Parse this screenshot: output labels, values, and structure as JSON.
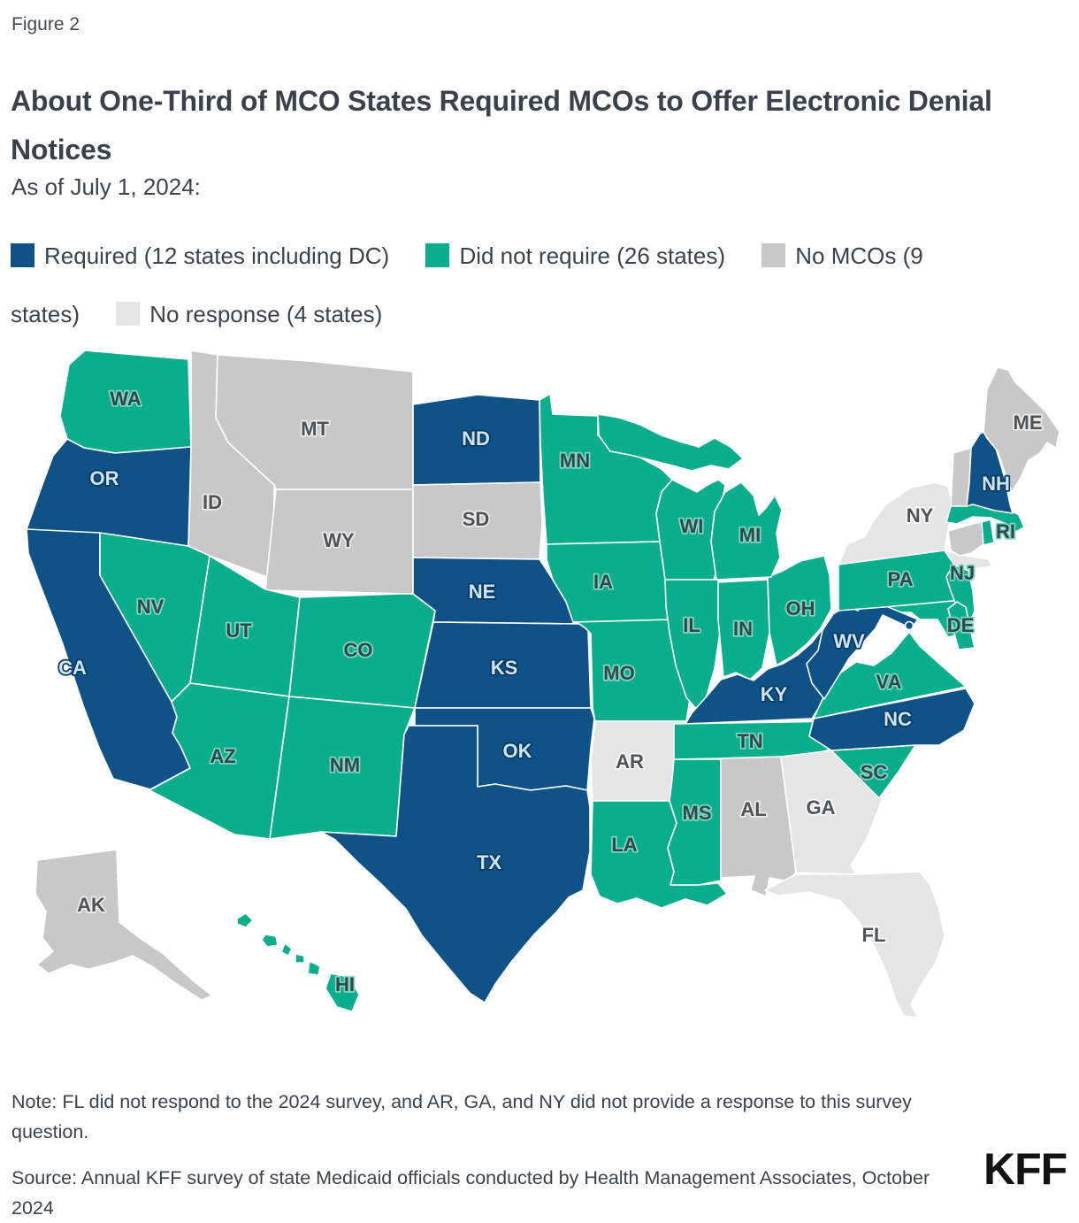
{
  "figure_label": "Figure 2",
  "title": "About One-Third of MCO States Required MCOs to Offer Electronic Denial Notices",
  "subtitle": "As of July 1, 2024:",
  "legend": {
    "items": [
      {
        "key": "required",
        "label": "Required (12 states including DC)",
        "color": "#0F5288"
      },
      {
        "key": "did_not_require",
        "label": "Did not require (26 states)",
        "color": "#0BAE8C"
      },
      {
        "key": "no_mcos",
        "label": "No MCOs (9 states)",
        "color": "#C8C8C8"
      },
      {
        "key": "no_response",
        "label": "No response (4 states)",
        "color": "#E5E5E6"
      }
    ]
  },
  "map": {
    "categories": {
      "required": {
        "fill": "#0F5288",
        "label_fill": "#CEE4F2",
        "label_stroke": "#0A3A61"
      },
      "did_not_require": {
        "fill": "#0BAE8C",
        "label_fill": "#2F4850",
        "label_stroke": "#7FD6BD"
      },
      "no_mcos": {
        "fill": "#C8C8C8",
        "label_fill": "#4D5357",
        "label_stroke": "#ECECEC"
      },
      "no_response": {
        "fill": "#E5E5E6",
        "label_fill": "#4D5357",
        "label_stroke": "#FBFBFB"
      }
    },
    "states": [
      {
        "abbr": "WA",
        "category": "did_not_require",
        "show_label": true
      },
      {
        "abbr": "OR",
        "category": "required",
        "show_label": true
      },
      {
        "abbr": "CA",
        "category": "required",
        "show_label": true
      },
      {
        "abbr": "NV",
        "category": "did_not_require",
        "show_label": true
      },
      {
        "abbr": "ID",
        "category": "no_mcos",
        "show_label": true
      },
      {
        "abbr": "MT",
        "category": "no_mcos",
        "show_label": true
      },
      {
        "abbr": "WY",
        "category": "no_mcos",
        "show_label": true
      },
      {
        "abbr": "UT",
        "category": "did_not_require",
        "show_label": true
      },
      {
        "abbr": "CO",
        "category": "did_not_require",
        "show_label": true
      },
      {
        "abbr": "AZ",
        "category": "did_not_require",
        "show_label": true
      },
      {
        "abbr": "NM",
        "category": "did_not_require",
        "show_label": true
      },
      {
        "abbr": "ND",
        "category": "required",
        "show_label": true
      },
      {
        "abbr": "SD",
        "category": "no_mcos",
        "show_label": true
      },
      {
        "abbr": "NE",
        "category": "required",
        "show_label": true
      },
      {
        "abbr": "KS",
        "category": "required",
        "show_label": true
      },
      {
        "abbr": "OK",
        "category": "required",
        "show_label": true
      },
      {
        "abbr": "TX",
        "category": "required",
        "show_label": true
      },
      {
        "abbr": "MN",
        "category": "did_not_require",
        "show_label": true
      },
      {
        "abbr": "IA",
        "category": "did_not_require",
        "show_label": true
      },
      {
        "abbr": "MO",
        "category": "did_not_require",
        "show_label": true
      },
      {
        "abbr": "AR",
        "category": "no_response",
        "show_label": true
      },
      {
        "abbr": "LA",
        "category": "did_not_require",
        "show_label": true
      },
      {
        "abbr": "WI",
        "category": "did_not_require",
        "show_label": true
      },
      {
        "abbr": "IL",
        "category": "did_not_require",
        "show_label": true
      },
      {
        "abbr": "IN",
        "category": "did_not_require",
        "show_label": true
      },
      {
        "abbr": "OH",
        "category": "did_not_require",
        "show_label": true
      },
      {
        "abbr": "MI",
        "category": "did_not_require",
        "show_label": true
      },
      {
        "abbr": "KY",
        "category": "required",
        "show_label": true
      },
      {
        "abbr": "TN",
        "category": "did_not_require",
        "show_label": true
      },
      {
        "abbr": "MS",
        "category": "did_not_require",
        "show_label": true
      },
      {
        "abbr": "AL",
        "category": "no_mcos",
        "show_label": true
      },
      {
        "abbr": "GA",
        "category": "no_response",
        "show_label": true
      },
      {
        "abbr": "FL",
        "category": "no_response",
        "show_label": true
      },
      {
        "abbr": "SC",
        "category": "did_not_require",
        "show_label": true
      },
      {
        "abbr": "NC",
        "category": "required",
        "show_label": true
      },
      {
        "abbr": "VA",
        "category": "did_not_require",
        "show_label": true
      },
      {
        "abbr": "WV",
        "category": "required",
        "show_label": true
      },
      {
        "abbr": "MD",
        "category": "did_not_require",
        "show_label": false
      },
      {
        "abbr": "DE",
        "category": "did_not_require",
        "show_label": true
      },
      {
        "abbr": "PA",
        "category": "did_not_require",
        "show_label": true
      },
      {
        "abbr": "NJ",
        "category": "did_not_require",
        "show_label": true
      },
      {
        "abbr": "NY",
        "category": "no_response",
        "show_label": true
      },
      {
        "abbr": "CT",
        "category": "no_mcos",
        "show_label": false
      },
      {
        "abbr": "RI",
        "category": "did_not_require",
        "show_label": true
      },
      {
        "abbr": "MA",
        "category": "did_not_require",
        "show_label": false
      },
      {
        "abbr": "VT",
        "category": "no_mcos",
        "show_label": false
      },
      {
        "abbr": "NH",
        "category": "required",
        "show_label": true
      },
      {
        "abbr": "ME",
        "category": "no_mcos",
        "show_label": true
      },
      {
        "abbr": "AK",
        "category": "no_mcos",
        "show_label": true
      },
      {
        "abbr": "HI",
        "category": "did_not_require",
        "show_label": true
      },
      {
        "abbr": "DC",
        "category": "required",
        "show_label": false
      }
    ]
  },
  "chart_data": {
    "type": "choropleth-map",
    "title": "About One-Third of MCO States Required MCOs to Offer Electronic Denial Notices",
    "subtitle": "As of July 1, 2024:",
    "legend_position": "top",
    "series": [
      {
        "name": "Required (12 states including DC)",
        "count": 12,
        "states": [
          "OR",
          "CA",
          "ND",
          "NE",
          "KS",
          "OK",
          "TX",
          "KY",
          "WV",
          "NC",
          "NH",
          "DC"
        ]
      },
      {
        "name": "Did not require (26 states)",
        "count": 26,
        "states": [
          "WA",
          "NV",
          "UT",
          "CO",
          "AZ",
          "NM",
          "MN",
          "IA",
          "MO",
          "WI",
          "IL",
          "IN",
          "OH",
          "MI",
          "TN",
          "MS",
          "LA",
          "SC",
          "VA",
          "MD",
          "DE",
          "PA",
          "NJ",
          "RI",
          "MA",
          "HI"
        ]
      },
      {
        "name": "No MCOs (9 states)",
        "count": 9,
        "states": [
          "AK",
          "ID",
          "MT",
          "WY",
          "SD",
          "AL",
          "VT",
          "CT",
          "ME"
        ]
      },
      {
        "name": "No response (4 states)",
        "count": 4,
        "states": [
          "NY",
          "AR",
          "GA",
          "FL"
        ]
      }
    ]
  },
  "note": "Note: FL did not respond to the 2024 survey, and AR, GA, and NY did not provide a response to this survey question.",
  "source": "Source: Annual KFF survey of state Medicaid officials conducted by Health Management Associates, October 2024",
  "logo": "KFF"
}
